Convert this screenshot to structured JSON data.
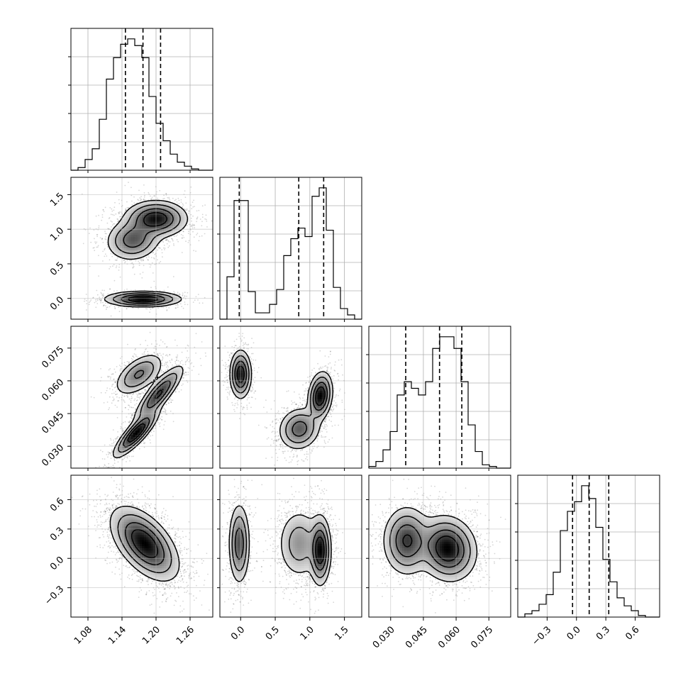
{
  "chart_data": {
    "type": "corner",
    "parameters": [
      {
        "range": [
          1.05,
          1.3
        ],
        "ticks": [
          1.08,
          1.14,
          1.2,
          1.26
        ],
        "tick_labels": [
          "1.08",
          "1.14",
          "1.20",
          "1.26"
        ],
        "hist": {
          "edges_start": 1.05,
          "bin_width": 0.0125,
          "values": [
            0,
            0.02,
            0.08,
            0.16,
            0.38,
            0.68,
            0.84,
            0.94,
            0.98,
            0.93,
            0.84,
            0.55,
            0.35,
            0.22,
            0.12,
            0.06,
            0.03,
            0.01,
            0,
            0
          ]
        },
        "quantiles": [
          1.146,
          1.177,
          1.208
        ]
      },
      {
        "range": [
          -0.3,
          1.75
        ],
        "ticks": [
          0.0,
          0.5,
          1.0,
          1.5
        ],
        "tick_labels": [
          "0.0",
          "0.5",
          "1.0",
          "1.5"
        ],
        "hist": {
          "edges_start": -0.3,
          "bin_width": 0.1025,
          "values": [
            0,
            0.2,
            0.56,
            0.56,
            0.13,
            0.03,
            0.03,
            0.07,
            0.14,
            0.3,
            0.38,
            0.43,
            0.39,
            0.58,
            0.62,
            0.42,
            0.15,
            0.05,
            0.02,
            0
          ]
        },
        "quantiles": [
          -0.02,
          0.84,
          1.2
        ]
      },
      {
        "range": [
          0.02,
          0.085
        ],
        "ticks": [
          0.03,
          0.045,
          0.06,
          0.075
        ],
        "tick_labels": [
          "0.030",
          "0.045",
          "0.060",
          "0.075"
        ],
        "hist": {
          "edges_start": 0.02,
          "bin_width": 0.00325,
          "values": [
            0.01,
            0.04,
            0.11,
            0.22,
            0.44,
            0.52,
            0.48,
            0.44,
            0.52,
            0.72,
            0.79,
            0.79,
            0.72,
            0.52,
            0.26,
            0.1,
            0.02,
            0.01,
            0,
            0
          ]
        },
        "quantiles": [
          0.0369,
          0.0524,
          0.0626
        ]
      },
      {
        "range": [
          -0.6,
          0.85
        ],
        "ticks": [
          -0.3,
          0.0,
          0.3,
          0.6
        ],
        "tick_labels": [
          "−0.3",
          "0.0",
          "0.3",
          "0.6"
        ],
        "hist": {
          "edges_start": -0.6,
          "bin_width": 0.0725,
          "values": [
            0,
            0.02,
            0.04,
            0.08,
            0.14,
            0.28,
            0.54,
            0.66,
            0.72,
            0.82,
            0.74,
            0.56,
            0.36,
            0.22,
            0.12,
            0.07,
            0.04,
            0.01,
            0,
            0
          ]
        },
        "quantiles": [
          -0.04,
          0.13,
          0.33
        ]
      }
    ],
    "pairs": [
      {
        "row": 1,
        "col": 0,
        "clusters": [
          {
            "mx": 1.2,
            "my": 1.15,
            "sx": 0.025,
            "sy": 0.12,
            "rho": 0.0,
            "w": 0.45
          },
          {
            "mx": 1.16,
            "my": 0.85,
            "sx": 0.022,
            "sy": 0.14,
            "rho": 0.1,
            "w": 0.3
          },
          {
            "mx": 1.177,
            "my": -0.01,
            "sx": 0.03,
            "sy": 0.05,
            "rho": 0.0,
            "w": 0.25
          }
        ]
      },
      {
        "row": 2,
        "col": 0,
        "clusters": [
          {
            "mx": 1.17,
            "my": 0.063,
            "sx": 0.02,
            "sy": 0.0045,
            "rho": 0.55,
            "w": 0.28
          },
          {
            "mx": 1.205,
            "my": 0.054,
            "sx": 0.02,
            "sy": 0.006,
            "rho": 0.85,
            "w": 0.36
          },
          {
            "mx": 1.165,
            "my": 0.036,
            "sx": 0.018,
            "sy": 0.005,
            "rho": 0.85,
            "w": 0.36
          }
        ]
      },
      {
        "row": 2,
        "col": 1,
        "clusters": [
          {
            "mx": 0.0,
            "my": 0.063,
            "sx": 0.07,
            "sy": 0.005,
            "rho": 0.0,
            "w": 0.3
          },
          {
            "mx": 1.15,
            "my": 0.053,
            "sx": 0.08,
            "sy": 0.005,
            "rho": 0.2,
            "w": 0.36
          },
          {
            "mx": 0.85,
            "my": 0.038,
            "sx": 0.14,
            "sy": 0.0045,
            "rho": 0.1,
            "w": 0.34
          }
        ]
      },
      {
        "row": 3,
        "col": 0,
        "clusters": [
          {
            "mx": 1.18,
            "my": 0.15,
            "sx": 0.027,
            "sy": 0.17,
            "rho": -0.55,
            "w": 1.0
          }
        ]
      },
      {
        "row": 3,
        "col": 1,
        "clusters": [
          {
            "mx": -0.02,
            "my": 0.15,
            "sx": 0.07,
            "sy": 0.19,
            "rho": 0.0,
            "w": 0.3
          },
          {
            "mx": 1.15,
            "my": 0.08,
            "sx": 0.07,
            "sy": 0.16,
            "rho": 0.0,
            "w": 0.38
          },
          {
            "mx": 0.85,
            "my": 0.15,
            "sx": 0.15,
            "sy": 0.17,
            "rho": 0.0,
            "w": 0.32
          }
        ]
      },
      {
        "row": 3,
        "col": 2,
        "clusters": [
          {
            "mx": 0.0375,
            "my": 0.18,
            "sx": 0.005,
            "sy": 0.16,
            "rho": 0.0,
            "w": 0.4
          },
          {
            "mx": 0.056,
            "my": 0.1,
            "sx": 0.006,
            "sy": 0.15,
            "rho": -0.1,
            "w": 0.6
          }
        ]
      }
    ]
  }
}
